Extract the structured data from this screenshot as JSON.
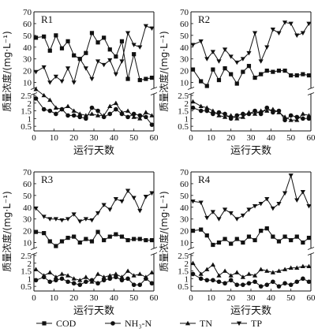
{
  "figure": {
    "legend_items": [
      {
        "label": "COD",
        "marker": "square"
      },
      {
        "label": "NH₃-N",
        "marker": "circle"
      },
      {
        "label": "TN",
        "marker": "triangle-up"
      },
      {
        "label": "TP",
        "marker": "triangle-down"
      }
    ]
  },
  "chart_data": [
    {
      "type": "line",
      "panel_label": "R1",
      "xlabel": "运行天数",
      "ylabel": "质量浓度/(mg·L⁻¹)",
      "x_ticks": [
        0,
        10,
        20,
        30,
        40,
        50,
        60
      ],
      "y_upper_ticks": [
        10,
        20,
        30,
        40,
        50,
        60,
        70
      ],
      "y_lower_ticks": [
        0.5,
        1.0,
        1.5,
        2.0,
        2.5
      ],
      "xlim": [
        0,
        60
      ],
      "ylim_upper": [
        5,
        70
      ],
      "ylim_lower": [
        0.2,
        2.6
      ],
      "broken_y_axis": true,
      "grid": false,
      "legend": "bottom",
      "x": [
        1,
        5,
        8,
        11,
        14,
        17,
        20,
        23,
        26,
        29,
        32,
        35,
        38,
        41,
        44,
        47,
        50,
        53,
        56,
        59
      ],
      "series": [
        {
          "name": "COD",
          "marker": "square",
          "panel": "upper",
          "values": [
            48,
            49,
            37,
            50,
            39,
            45,
            33,
            30,
            35,
            52,
            44,
            48,
            38,
            32,
            45,
            13,
            34,
            12,
            13,
            14
          ]
        },
        {
          "name": "TP",
          "marker": "triangle-down",
          "panel": "upper",
          "values": [
            19,
            23,
            10,
            15,
            11,
            22,
            10,
            30,
            22,
            13,
            28,
            25,
            29,
            17,
            28,
            52,
            42,
            40,
            58,
            56
          ]
        },
        {
          "name": "NH₃-N",
          "marker": "circle",
          "panel": "lower",
          "values": [
            2.3,
            1.6,
            1.5,
            1.3,
            1.6,
            1.2,
            1.2,
            1.1,
            1.0,
            1.7,
            1.5,
            1.1,
            1.3,
            1.6,
            1.3,
            1.1,
            1.3,
            1.2,
            1.1,
            0.6
          ]
        },
        {
          "name": "TN",
          "marker": "triangle-up",
          "panel": "lower",
          "values": [
            2.9,
            2.5,
            2.2,
            1.7,
            1.6,
            1.8,
            1.5,
            1.3,
            1.2,
            1.3,
            1.2,
            1.2,
            1.8,
            2.0,
            1.4,
            1.5,
            1.1,
            1.0,
            1.4,
            1.2
          ]
        }
      ]
    },
    {
      "type": "line",
      "panel_label": "R2",
      "xlabel": "运行天数",
      "ylabel": "质量浓度/(mg·L⁻¹)",
      "x_ticks": [
        0,
        10,
        20,
        30,
        40,
        50,
        60
      ],
      "y_upper_ticks": [
        10,
        20,
        30,
        40,
        50,
        60,
        70
      ],
      "y_lower_ticks": [
        0.5,
        1.0,
        1.5,
        2.0,
        2.5
      ],
      "xlim": [
        0,
        60
      ],
      "ylim_upper": [
        5,
        70
      ],
      "ylim_lower": [
        0.2,
        2.6
      ],
      "broken_y_axis": true,
      "grid": false,
      "legend": "bottom",
      "x": [
        1,
        5,
        8,
        11,
        14,
        17,
        20,
        23,
        26,
        29,
        32,
        35,
        38,
        41,
        44,
        47,
        50,
        53,
        56,
        59
      ],
      "series": [
        {
          "name": "TP",
          "marker": "triangle-down",
          "panel": "upper",
          "values": [
            42,
            45,
            30,
            36,
            28,
            38,
            32,
            27,
            30,
            35,
            52,
            28,
            40,
            55,
            52,
            61,
            60,
            50,
            52,
            60
          ]
        },
        {
          "name": "COD",
          "marker": "square",
          "panel": "upper",
          "values": [
            21,
            11,
            7,
            21,
            12,
            22,
            17,
            9,
            19,
            24,
            14,
            17,
            20,
            19,
            20,
            20,
            16,
            16,
            17,
            16
          ]
        },
        {
          "name": "NH₃-N",
          "marker": "circle",
          "panel": "lower",
          "values": [
            1.7,
            1.5,
            1.5,
            1.3,
            1.4,
            1.3,
            1.0,
            1.2,
            1.3,
            1.3,
            1.5,
            1.3,
            1.7,
            1.4,
            1.5,
            0.9,
            1.2,
            1.1,
            1.0,
            1.0
          ]
        },
        {
          "name": "TN",
          "marker": "triangle-up",
          "panel": "lower",
          "values": [
            2.1,
            1.8,
            1.7,
            1.5,
            1.2,
            1.1,
            1.2,
            1.0,
            1.1,
            1.4,
            1.3,
            1.5,
            1.5,
            1.6,
            1.4,
            1.1,
            0.9,
            0.9,
            1.3,
            1.2
          ]
        }
      ]
    },
    {
      "type": "line",
      "panel_label": "R3",
      "xlabel": "运行天数",
      "ylabel": "质量浓度/(mg·L⁻¹)",
      "x_ticks": [
        0,
        10,
        20,
        30,
        40,
        50,
        60
      ],
      "y_upper_ticks": [
        10,
        20,
        30,
        40,
        50,
        60,
        70
      ],
      "y_lower_ticks": [
        0.5,
        1.0,
        1.5,
        2.0,
        2.5
      ],
      "xlim": [
        0,
        60
      ],
      "ylim_upper": [
        5,
        70
      ],
      "ylim_lower": [
        0.2,
        2.6
      ],
      "broken_y_axis": true,
      "grid": false,
      "legend": "bottom",
      "x": [
        1,
        5,
        8,
        11,
        14,
        17,
        20,
        23,
        26,
        29,
        32,
        35,
        38,
        41,
        44,
        47,
        50,
        53,
        56,
        59
      ],
      "series": [
        {
          "name": "TP",
          "marker": "triangle-down",
          "panel": "upper",
          "values": [
            39,
            32,
            30,
            30,
            29,
            30,
            34,
            28,
            30,
            29,
            35,
            42,
            38,
            47,
            45,
            54,
            48,
            37,
            49,
            52
          ]
        },
        {
          "name": "COD",
          "marker": "square",
          "panel": "upper",
          "values": [
            19,
            18,
            11,
            7,
            11,
            14,
            15,
            10,
            13,
            11,
            19,
            12,
            15,
            17,
            15,
            12,
            13,
            13,
            12,
            12
          ]
        },
        {
          "name": "NH₃-N",
          "marker": "circle",
          "panel": "lower",
          "values": [
            0.9,
            1.1,
            0.8,
            0.9,
            1.0,
            0.8,
            0.7,
            0.6,
            0.8,
            0.9,
            0.7,
            0.9,
            1.0,
            1.1,
            0.9,
            1.0,
            0.6,
            0.6,
            1.0,
            0.7
          ]
        },
        {
          "name": "TN",
          "marker": "triangle-up",
          "panel": "lower",
          "values": [
            1.6,
            1.2,
            1.4,
            1.1,
            1.3,
            1.2,
            1.0,
            0.9,
            1.1,
            0.8,
            1.3,
            1.1,
            1.2,
            1.3,
            1.1,
            1.5,
            1.2,
            1.3,
            1.1,
            1.4
          ]
        }
      ]
    },
    {
      "type": "line",
      "panel_label": "R4",
      "xlabel": "运行天数",
      "ylabel": "质量浓度/(mg·L⁻¹)",
      "x_ticks": [
        0,
        10,
        20,
        30,
        40,
        50,
        60
      ],
      "y_upper_ticks": [
        10,
        20,
        30,
        40,
        50,
        60,
        70
      ],
      "y_lower_ticks": [
        0.5,
        1.0,
        1.5,
        2.0,
        2.5
      ],
      "xlim": [
        0,
        60
      ],
      "ylim_upper": [
        5,
        70
      ],
      "ylim_lower": [
        0.2,
        2.6
      ],
      "broken_y_axis": true,
      "grid": false,
      "legend": "bottom",
      "x": [
        1,
        5,
        8,
        11,
        14,
        17,
        20,
        23,
        26,
        29,
        32,
        35,
        38,
        41,
        44,
        47,
        50,
        53,
        56,
        59
      ],
      "series": [
        {
          "name": "TP",
          "marker": "triangle-down",
          "panel": "upper",
          "values": [
            45,
            44,
            31,
            36,
            30,
            38,
            35,
            30,
            33,
            38,
            41,
            43,
            47,
            39,
            43,
            52,
            67,
            46,
            53,
            41
          ]
        },
        {
          "name": "COD",
          "marker": "square",
          "panel": "upper",
          "values": [
            20,
            21,
            16,
            8,
            10,
            13,
            9,
            13,
            10,
            15,
            12,
            20,
            22,
            15,
            11,
            15,
            12,
            15,
            10,
            14
          ]
        },
        {
          "name": "NH₃-N",
          "marker": "circle",
          "panel": "lower",
          "values": [
            1.3,
            1.0,
            0.9,
            0.9,
            0.8,
            0.7,
            0.9,
            0.6,
            0.6,
            0.7,
            0.8,
            0.5,
            0.6,
            0.8,
            0.5,
            0.7,
            0.6,
            0.8,
            1.0,
            0.8
          ]
        },
        {
          "name": "TN",
          "marker": "triangle-up",
          "panel": "lower",
          "values": [
            2.0,
            1.3,
            1.6,
            1.9,
            1.2,
            1.5,
            1.2,
            1.4,
            1.1,
            1.3,
            1.2,
            1.6,
            1.5,
            1.4,
            1.5,
            1.6,
            1.7,
            1.7,
            1.8,
            1.8
          ]
        }
      ]
    }
  ]
}
